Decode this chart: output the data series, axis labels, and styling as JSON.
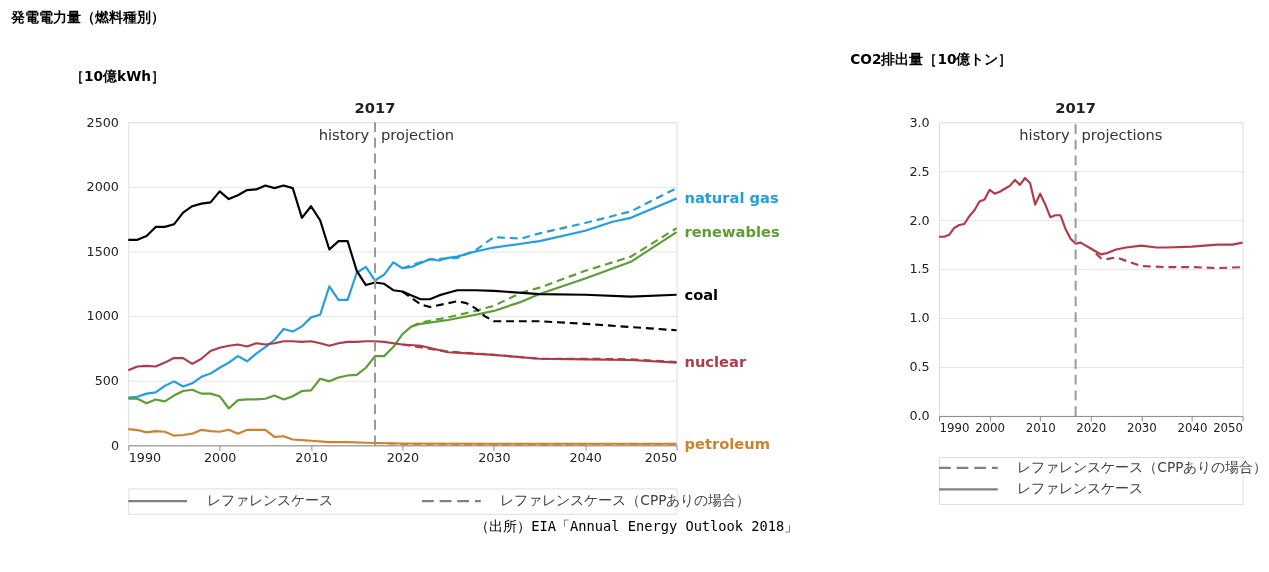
{
  "chart_data": [
    {
      "type": "line",
      "title": "発電電力量（燃料種別）",
      "ylabel": "［10億kWh］",
      "xlim": [
        1990,
        2050
      ],
      "ylim": [
        0,
        2500
      ],
      "xticks": [
        1990,
        2000,
        2010,
        2020,
        2030,
        2040,
        2050
      ],
      "yticks": [
        0,
        500,
        1000,
        1500,
        2000,
        2500
      ],
      "grid": "y",
      "legend": "bottom",
      "ref_lines": [
        {
          "axis": "x",
          "value": 2017,
          "label": "2017",
          "color": "#999999",
          "line_style": "dashed"
        }
      ],
      "annotations": [
        "history",
        "projection",
        "（出所）EIA「Annual Energy Outlook 2018」"
      ],
      "series": [
        {
          "name": "natural gas",
          "color": "#1f9fdf",
          "line_style": "solid",
          "x": [
            1990,
            1991,
            1992,
            1993,
            1994,
            1995,
            1996,
            1997,
            1998,
            1999,
            2000,
            2001,
            2002,
            2003,
            2004,
            2005,
            2006,
            2007,
            2008,
            2009,
            2010,
            2011,
            2012,
            2013,
            2014,
            2015,
            2016,
            2017,
            2018,
            2019,
            2020,
            2021,
            2022,
            2023,
            2024,
            2025,
            2026,
            2028,
            2030,
            2033,
            2035,
            2040,
            2043,
            2045,
            2050
          ],
          "values": [
            370,
            375,
            400,
            410,
            460,
            495,
            455,
            480,
            530,
            555,
            600,
            640,
            690,
            650,
            710,
            760,
            815,
            900,
            880,
            920,
            990,
            1010,
            1230,
            1125,
            1125,
            1335,
            1380,
            1275,
            1320,
            1415,
            1370,
            1380,
            1410,
            1440,
            1430,
            1450,
            1460,
            1500,
            1530,
            1560,
            1580,
            1660,
            1730,
            1760,
            1910
          ]
        },
        {
          "color": "#1f9fdf",
          "line_style": "dashed",
          "x": [
            2020,
            2023,
            2026,
            2028,
            2030,
            2033,
            2035,
            2040,
            2045,
            2050
          ],
          "values": [
            1370,
            1440,
            1450,
            1510,
            1610,
            1600,
            1640,
            1720,
            1810,
            1990
          ]
        },
        {
          "name": "renewables",
          "color": "#5c9e31",
          "line_style": "solid",
          "x": [
            1990,
            1991,
            1992,
            1993,
            1994,
            1995,
            1996,
            1997,
            1998,
            1999,
            2000,
            2001,
            2002,
            2003,
            2004,
            2005,
            2006,
            2007,
            2008,
            2009,
            2010,
            2011,
            2012,
            2013,
            2014,
            2015,
            2016,
            2017,
            2018,
            2019,
            2020,
            2021,
            2022,
            2025,
            2028,
            2030,
            2033,
            2035,
            2040,
            2045,
            2050
          ],
          "values": [
            360,
            360,
            325,
            355,
            340,
            385,
            420,
            430,
            400,
            400,
            380,
            285,
            350,
            355,
            355,
            360,
            385,
            355,
            380,
            420,
            425,
            515,
            495,
            525,
            540,
            545,
            600,
            690,
            690,
            760,
            860,
            920,
            940,
            970,
            1010,
            1040,
            1110,
            1170,
            1290,
            1420,
            1650
          ]
        },
        {
          "color": "#5c9e31",
          "line_style": "dashed",
          "x": [
            2021,
            2022,
            2025,
            2028,
            2030,
            2033,
            2035,
            2040,
            2045,
            2050
          ],
          "values": [
            920,
            950,
            990,
            1040,
            1080,
            1180,
            1220,
            1350,
            1460,
            1680
          ]
        },
        {
          "name": "coal",
          "color": "#000000",
          "line_style": "solid",
          "x": [
            1990,
            1991,
            1992,
            1993,
            1994,
            1995,
            1996,
            1997,
            1998,
            1999,
            2000,
            2001,
            2002,
            2003,
            2004,
            2005,
            2006,
            2007,
            2008,
            2009,
            2010,
            2011,
            2012,
            2013,
            2014,
            2015,
            2016,
            2017,
            2018,
            2019,
            2020,
            2021,
            2022,
            2023,
            2024,
            2025,
            2026,
            2028,
            2030,
            2035,
            2040,
            2045,
            2050
          ],
          "values": [
            1590,
            1590,
            1620,
            1690,
            1690,
            1710,
            1800,
            1850,
            1870,
            1880,
            1965,
            1905,
            1935,
            1975,
            1980,
            2010,
            1990,
            2010,
            1990,
            1760,
            1850,
            1740,
            1515,
            1580,
            1580,
            1350,
            1240,
            1260,
            1250,
            1200,
            1190,
            1160,
            1130,
            1130,
            1160,
            1180,
            1200,
            1200,
            1195,
            1170,
            1165,
            1150,
            1165
          ]
        },
        {
          "color": "#000000",
          "line_style": "dashed",
          "x": [
            2020,
            2022,
            2023,
            2025,
            2026,
            2027,
            2028,
            2029,
            2030,
            2035,
            2040,
            2045,
            2050
          ],
          "values": [
            1190,
            1090,
            1070,
            1100,
            1115,
            1100,
            1060,
            1000,
            960,
            960,
            940,
            915,
            890
          ]
        },
        {
          "name": "nuclear",
          "color": "#b03a4a",
          "line_style": "solid",
          "x": [
            1990,
            1991,
            1992,
            1993,
            1994,
            1995,
            1996,
            1997,
            1998,
            1999,
            2000,
            2001,
            2002,
            2003,
            2004,
            2005,
            2006,
            2007,
            2008,
            2009,
            2010,
            2011,
            2012,
            2013,
            2014,
            2015,
            2016,
            2017,
            2018,
            2019,
            2020,
            2022,
            2025,
            2030,
            2035,
            2040,
            2045,
            2050
          ],
          "values": [
            580,
            610,
            615,
            610,
            640,
            675,
            675,
            630,
            670,
            730,
            755,
            770,
            780,
            765,
            790,
            780,
            790,
            805,
            805,
            800,
            805,
            790,
            770,
            790,
            800,
            800,
            805,
            805,
            800,
            790,
            780,
            770,
            720,
            700,
            670,
            665,
            660,
            640
          ]
        },
        {
          "color": "#b03a4a",
          "line_style": "dashed",
          "x": [
            2020,
            2025,
            2030,
            2035,
            2040,
            2045,
            2050
          ],
          "values": [
            780,
            725,
            700,
            670,
            670,
            665,
            645
          ]
        },
        {
          "name": "petroleum",
          "color": "#d0822a",
          "line_style": "solid",
          "x": [
            1990,
            1991,
            1992,
            1993,
            1994,
            1995,
            1996,
            1997,
            1998,
            1999,
            2000,
            2001,
            2002,
            2003,
            2004,
            2005,
            2006,
            2007,
            2008,
            2009,
            2010,
            2012,
            2014,
            2016,
            2017,
            2020,
            2030,
            2040,
            2050
          ],
          "values": [
            125,
            118,
            100,
            110,
            105,
            75,
            80,
            90,
            120,
            110,
            105,
            120,
            90,
            120,
            120,
            120,
            65,
            70,
            45,
            40,
            35,
            25,
            25,
            20,
            18,
            14,
            12,
            12,
            12
          ]
        },
        {
          "color": "#d0822a",
          "line_style": "dashed",
          "x": [
            2017,
            2020,
            2030,
            2040,
            2050
          ],
          "values": [
            18,
            10,
            6,
            8,
            10
          ]
        },
        {
          "name": "レファレンスケース",
          "color": "#808080",
          "line_style": "solid"
        },
        {
          "name": "レファレンスケース（CPPありの場合）",
          "color": "#808080",
          "line_style": "dashed"
        }
      ]
    },
    {
      "type": "line",
      "title": "CO2排出量［10億トン］",
      "xlim": [
        1990,
        2050
      ],
      "ylim": [
        0,
        3
      ],
      "xticks": [
        1990,
        2000,
        2010,
        2020,
        2030,
        2040,
        2050
      ],
      "yticks": [
        {
          "value": 0,
          "label": "0.0"
        },
        0.5,
        {
          "value": 1,
          "label": "1.0"
        },
        1.5,
        {
          "value": 2,
          "label": "2.0"
        },
        2.5,
        {
          "value": 3,
          "label": "3.0"
        }
      ],
      "grid": "y",
      "legend": "bottom",
      "ref_lines": [
        {
          "axis": "x",
          "value": 2017,
          "label": "2017",
          "color": "#999999",
          "line_style": "dashed"
        }
      ],
      "annotations": [
        "history",
        "projections"
      ],
      "series": [
        {
          "color": "#b5394a",
          "line_style": "solid",
          "x": [
            1990,
            1991,
            1992,
            1993,
            1994,
            1995,
            1996,
            1997,
            1998,
            1999,
            2000,
            2001,
            2002,
            2003,
            2004,
            2005,
            2006,
            2007,
            2008,
            2009,
            2010,
            2011,
            2012,
            2013,
            2014,
            2015,
            2016,
            2017,
            2018,
            2019,
            2020,
            2021,
            2022,
            2023,
            2025,
            2027,
            2030,
            2033,
            2035,
            2040,
            2045,
            2048,
            2050
          ],
          "values": [
            1.83,
            1.83,
            1.85,
            1.92,
            1.95,
            1.96,
            2.04,
            2.1,
            2.19,
            2.21,
            2.31,
            2.27,
            2.29,
            2.32,
            2.35,
            2.41,
            2.36,
            2.43,
            2.38,
            2.16,
            2.27,
            2.16,
            2.03,
            2.05,
            2.05,
            1.91,
            1.81,
            1.76,
            1.77,
            1.74,
            1.71,
            1.68,
            1.65,
            1.66,
            1.7,
            1.72,
            1.74,
            1.72,
            1.72,
            1.73,
            1.75,
            1.75,
            1.77
          ]
        },
        {
          "color": "#b5394a",
          "line_style": "dashed",
          "x": [
            2021,
            2022,
            2023,
            2025,
            2030,
            2035,
            2040,
            2045,
            2050
          ],
          "values": [
            1.66,
            1.61,
            1.6,
            1.62,
            1.53,
            1.52,
            1.52,
            1.51,
            1.52
          ]
        },
        {
          "name": "レファレンスケース（CPPありの場合）",
          "color": "#808080",
          "line_style": "dashed"
        },
        {
          "name": "レファレンスケース",
          "color": "#808080",
          "line_style": "solid"
        }
      ]
    }
  ]
}
